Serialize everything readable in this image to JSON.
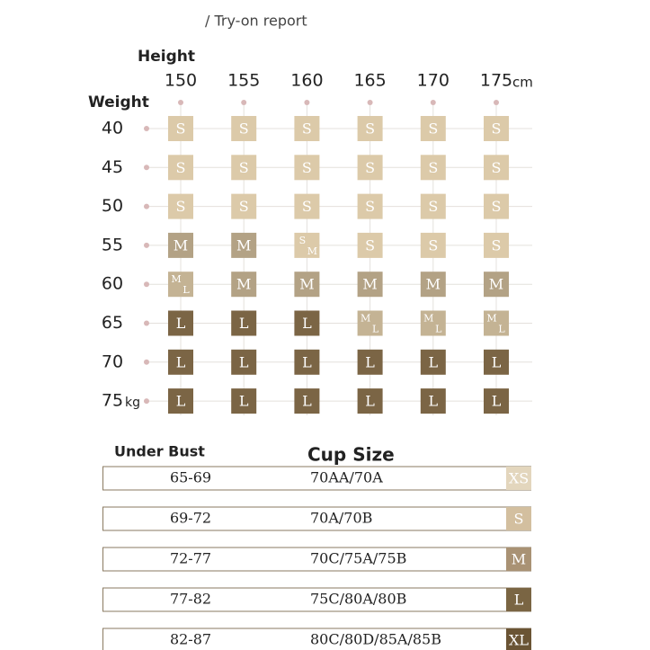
{
  "header": {
    "title": "/ Try-on report"
  },
  "grid": {
    "height_label": "Height",
    "weight_label": "Weight",
    "heights": [
      "150",
      "155",
      "160",
      "165",
      "170",
      "175"
    ],
    "height_unit": "cm",
    "weights": [
      "40",
      "45",
      "50",
      "55",
      "60",
      "65",
      "70",
      "75"
    ],
    "weight_unit": "kg",
    "rows": [
      [
        [
          "S"
        ],
        [
          "S"
        ],
        [
          "S"
        ],
        [
          "S"
        ],
        [
          "S"
        ],
        [
          "S"
        ]
      ],
      [
        [
          "S"
        ],
        [
          "S"
        ],
        [
          "S"
        ],
        [
          "S"
        ],
        [
          "S"
        ],
        [
          "S"
        ]
      ],
      [
        [
          "S"
        ],
        [
          "S"
        ],
        [
          "S"
        ],
        [
          "S"
        ],
        [
          "S"
        ],
        [
          "S"
        ]
      ],
      [
        [
          "M"
        ],
        [
          "M"
        ],
        [
          "S",
          "M"
        ],
        [
          "S"
        ],
        [
          "S"
        ],
        [
          "S"
        ]
      ],
      [
        [
          "M",
          "L"
        ],
        [
          "M"
        ],
        [
          "M"
        ],
        [
          "M"
        ],
        [
          "M"
        ],
        [
          "M"
        ]
      ],
      [
        [
          "L"
        ],
        [
          "L"
        ],
        [
          "L"
        ],
        [
          "M",
          "L"
        ],
        [
          "M",
          "L"
        ],
        [
          "M",
          "L"
        ]
      ],
      [
        [
          "L"
        ],
        [
          "L"
        ],
        [
          "L"
        ],
        [
          "L"
        ],
        [
          "L"
        ],
        [
          "L"
        ]
      ],
      [
        [
          "L"
        ],
        [
          "L"
        ],
        [
          "L"
        ],
        [
          "L"
        ],
        [
          "L"
        ],
        [
          "L"
        ]
      ]
    ]
  },
  "cup": {
    "under_bust_label": "Under Bust",
    "cup_size_label": "Cup Size",
    "rows": [
      {
        "under_bust": "65-69",
        "cups": "70AA/70A",
        "size": "XS"
      },
      {
        "under_bust": "69-72",
        "cups": "70A/70B",
        "size": "S"
      },
      {
        "under_bust": "72-77",
        "cups": "70C/75A/75B",
        "size": "M"
      },
      {
        "under_bust": "77-82",
        "cups": "75C/80A/80B",
        "size": "L"
      },
      {
        "under_bust": "82-87",
        "cups": "80C/80D/85A/85B",
        "size": "XL"
      }
    ]
  }
}
